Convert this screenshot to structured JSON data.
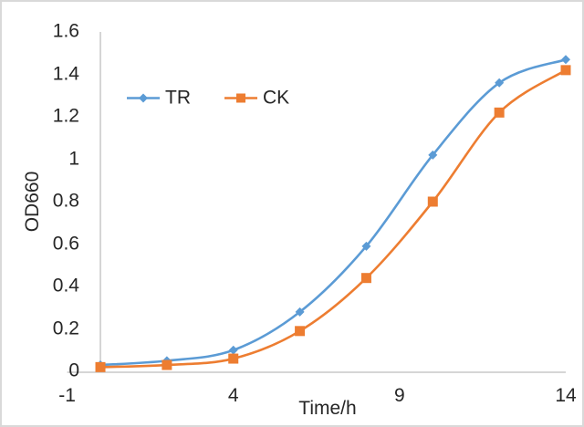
{
  "chart_data": {
    "type": "line",
    "title": "",
    "xlabel": "Time/h",
    "ylabel": "OD660",
    "x": [
      0,
      2,
      4,
      6,
      8,
      10,
      12,
      14
    ],
    "series": [
      {
        "name": "TR",
        "color": "#5B9BD5",
        "marker": "diamond",
        "values": [
          0.03,
          0.05,
          0.1,
          0.28,
          0.59,
          1.02,
          1.36,
          1.47
        ]
      },
      {
        "name": "CK",
        "color": "#ED7D31",
        "marker": "square",
        "values": [
          0.02,
          0.03,
          0.06,
          0.19,
          0.44,
          0.8,
          1.22,
          1.42
        ]
      }
    ],
    "xlim": [
      -1,
      14
    ],
    "ylim": [
      0,
      1.6
    ],
    "x_ticks": [
      -1,
      4,
      9,
      14
    ],
    "x_tick_labels": [
      "-1",
      "4",
      "9",
      "14"
    ],
    "y_ticks": [
      0,
      0.2,
      0.4,
      0.6,
      0.8,
      1.0,
      1.2,
      1.4,
      1.6
    ],
    "y_tick_labels": [
      "0",
      "0.2",
      "0.4",
      "0.6",
      "0.8",
      "1",
      "1.2",
      "1.4",
      "1.6"
    ],
    "grid": false,
    "smooth_lines": true,
    "legend_position": "inside-top-left",
    "legend_entries": [
      "TR",
      "CK"
    ],
    "axis_line_color": "#C8C8C8",
    "text_color": "#262626",
    "frame_border_color": "#D9D9D9",
    "background_color": "#FFFFFF",
    "y_axis_crosses_at_x": 0
  }
}
